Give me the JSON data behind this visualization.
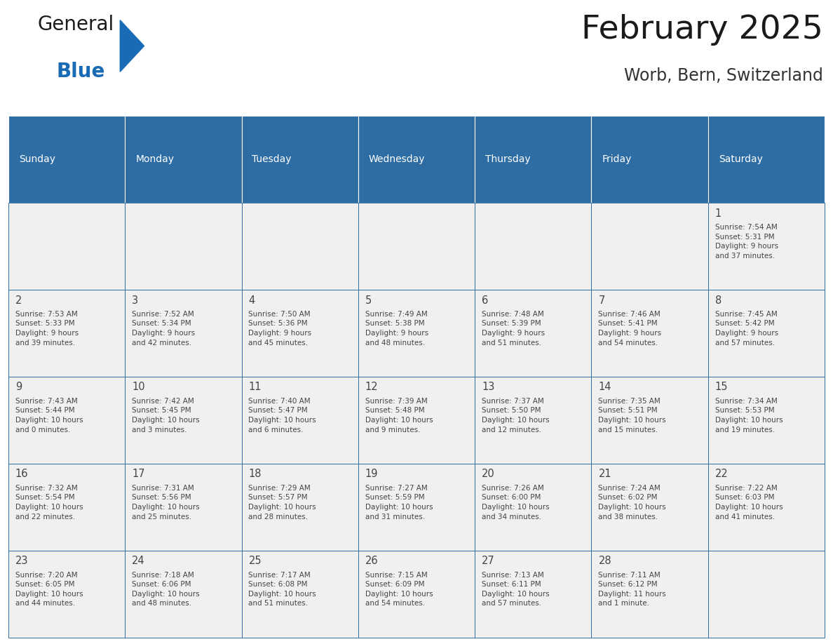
{
  "title": "February 2025",
  "subtitle": "Worb, Bern, Switzerland",
  "header_bg": "#2E6DA4",
  "header_text": "#FFFFFF",
  "cell_bg": "#F0F0F0",
  "border_color": "#2E6DA4",
  "text_color": "#444444",
  "day_number_color": "#333333",
  "day_headers": [
    "Sunday",
    "Monday",
    "Tuesday",
    "Wednesday",
    "Thursday",
    "Friday",
    "Saturday"
  ],
  "weeks": [
    [
      {
        "day": "",
        "info": ""
      },
      {
        "day": "",
        "info": ""
      },
      {
        "day": "",
        "info": ""
      },
      {
        "day": "",
        "info": ""
      },
      {
        "day": "",
        "info": ""
      },
      {
        "day": "",
        "info": ""
      },
      {
        "day": "1",
        "info": "Sunrise: 7:54 AM\nSunset: 5:31 PM\nDaylight: 9 hours\nand 37 minutes."
      }
    ],
    [
      {
        "day": "2",
        "info": "Sunrise: 7:53 AM\nSunset: 5:33 PM\nDaylight: 9 hours\nand 39 minutes."
      },
      {
        "day": "3",
        "info": "Sunrise: 7:52 AM\nSunset: 5:34 PM\nDaylight: 9 hours\nand 42 minutes."
      },
      {
        "day": "4",
        "info": "Sunrise: 7:50 AM\nSunset: 5:36 PM\nDaylight: 9 hours\nand 45 minutes."
      },
      {
        "day": "5",
        "info": "Sunrise: 7:49 AM\nSunset: 5:38 PM\nDaylight: 9 hours\nand 48 minutes."
      },
      {
        "day": "6",
        "info": "Sunrise: 7:48 AM\nSunset: 5:39 PM\nDaylight: 9 hours\nand 51 minutes."
      },
      {
        "day": "7",
        "info": "Sunrise: 7:46 AM\nSunset: 5:41 PM\nDaylight: 9 hours\nand 54 minutes."
      },
      {
        "day": "8",
        "info": "Sunrise: 7:45 AM\nSunset: 5:42 PM\nDaylight: 9 hours\nand 57 minutes."
      }
    ],
    [
      {
        "day": "9",
        "info": "Sunrise: 7:43 AM\nSunset: 5:44 PM\nDaylight: 10 hours\nand 0 minutes."
      },
      {
        "day": "10",
        "info": "Sunrise: 7:42 AM\nSunset: 5:45 PM\nDaylight: 10 hours\nand 3 minutes."
      },
      {
        "day": "11",
        "info": "Sunrise: 7:40 AM\nSunset: 5:47 PM\nDaylight: 10 hours\nand 6 minutes."
      },
      {
        "day": "12",
        "info": "Sunrise: 7:39 AM\nSunset: 5:48 PM\nDaylight: 10 hours\nand 9 minutes."
      },
      {
        "day": "13",
        "info": "Sunrise: 7:37 AM\nSunset: 5:50 PM\nDaylight: 10 hours\nand 12 minutes."
      },
      {
        "day": "14",
        "info": "Sunrise: 7:35 AM\nSunset: 5:51 PM\nDaylight: 10 hours\nand 15 minutes."
      },
      {
        "day": "15",
        "info": "Sunrise: 7:34 AM\nSunset: 5:53 PM\nDaylight: 10 hours\nand 19 minutes."
      }
    ],
    [
      {
        "day": "16",
        "info": "Sunrise: 7:32 AM\nSunset: 5:54 PM\nDaylight: 10 hours\nand 22 minutes."
      },
      {
        "day": "17",
        "info": "Sunrise: 7:31 AM\nSunset: 5:56 PM\nDaylight: 10 hours\nand 25 minutes."
      },
      {
        "day": "18",
        "info": "Sunrise: 7:29 AM\nSunset: 5:57 PM\nDaylight: 10 hours\nand 28 minutes."
      },
      {
        "day": "19",
        "info": "Sunrise: 7:27 AM\nSunset: 5:59 PM\nDaylight: 10 hours\nand 31 minutes."
      },
      {
        "day": "20",
        "info": "Sunrise: 7:26 AM\nSunset: 6:00 PM\nDaylight: 10 hours\nand 34 minutes."
      },
      {
        "day": "21",
        "info": "Sunrise: 7:24 AM\nSunset: 6:02 PM\nDaylight: 10 hours\nand 38 minutes."
      },
      {
        "day": "22",
        "info": "Sunrise: 7:22 AM\nSunset: 6:03 PM\nDaylight: 10 hours\nand 41 minutes."
      }
    ],
    [
      {
        "day": "23",
        "info": "Sunrise: 7:20 AM\nSunset: 6:05 PM\nDaylight: 10 hours\nand 44 minutes."
      },
      {
        "day": "24",
        "info": "Sunrise: 7:18 AM\nSunset: 6:06 PM\nDaylight: 10 hours\nand 48 minutes."
      },
      {
        "day": "25",
        "info": "Sunrise: 7:17 AM\nSunset: 6:08 PM\nDaylight: 10 hours\nand 51 minutes."
      },
      {
        "day": "26",
        "info": "Sunrise: 7:15 AM\nSunset: 6:09 PM\nDaylight: 10 hours\nand 54 minutes."
      },
      {
        "day": "27",
        "info": "Sunrise: 7:13 AM\nSunset: 6:11 PM\nDaylight: 10 hours\nand 57 minutes."
      },
      {
        "day": "28",
        "info": "Sunrise: 7:11 AM\nSunset: 6:12 PM\nDaylight: 11 hours\nand 1 minute."
      },
      {
        "day": "",
        "info": ""
      }
    ]
  ],
  "logo_general_color": "#1a1a1a",
  "logo_blue_color": "#1a6bb5",
  "logo_triangle_color": "#1a6bb5"
}
